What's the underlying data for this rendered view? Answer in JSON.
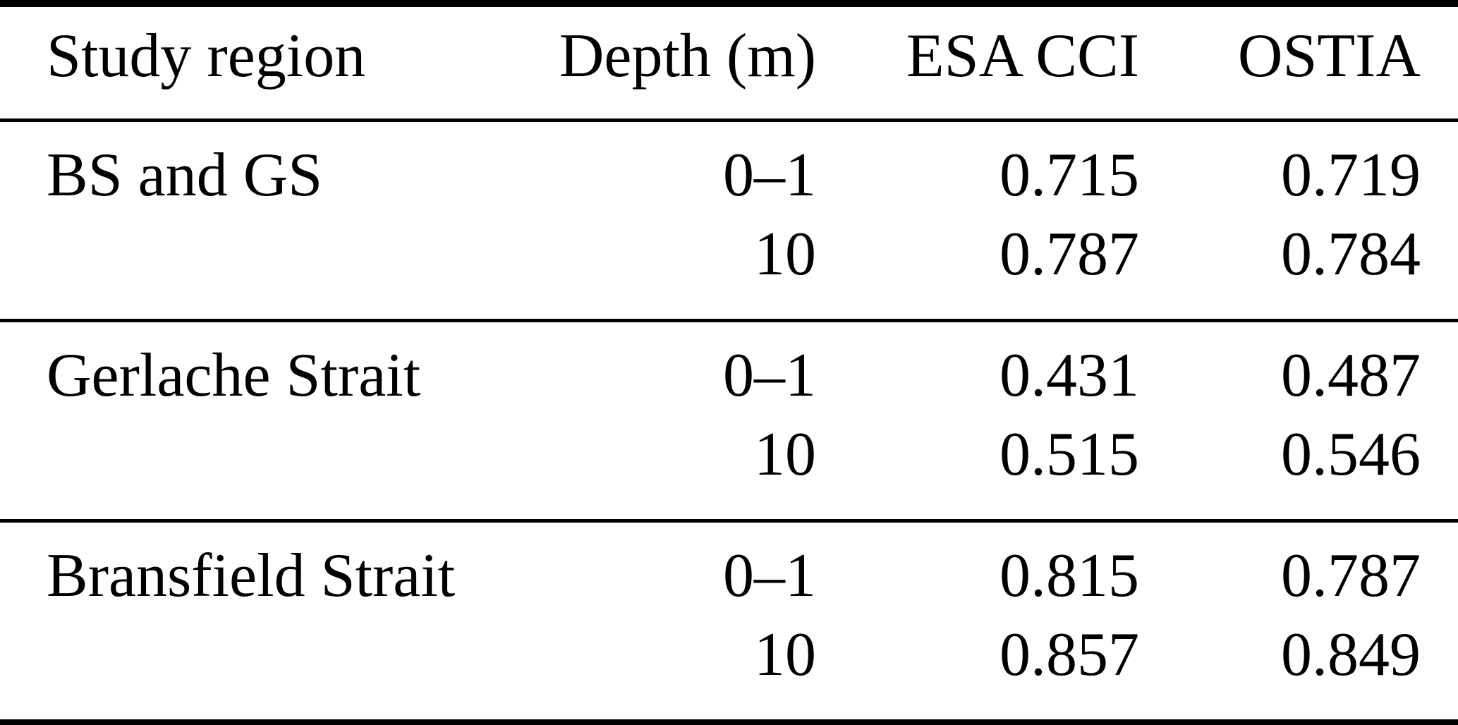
{
  "table": {
    "columns": [
      "Study region",
      "Depth (m)",
      "ESA CCI",
      "OSTIA"
    ],
    "sections": [
      {
        "region": "BS and GS",
        "rows": [
          {
            "depth": "0–1",
            "esa_cci": "0.715",
            "ostia": "0.719"
          },
          {
            "depth": "10",
            "esa_cci": "0.787",
            "ostia": "0.784"
          }
        ]
      },
      {
        "region": "Gerlache Strait",
        "rows": [
          {
            "depth": "0–1",
            "esa_cci": "0.431",
            "ostia": "0.487"
          },
          {
            "depth": "10",
            "esa_cci": "0.515",
            "ostia": "0.546"
          }
        ]
      },
      {
        "region": "Bransfield Strait",
        "rows": [
          {
            "depth": "0–1",
            "esa_cci": "0.815",
            "ostia": "0.787"
          },
          {
            "depth": "10",
            "esa_cci": "0.857",
            "ostia": "0.849"
          }
        ]
      }
    ]
  },
  "chart_data": {
    "type": "table",
    "columns": [
      "Study region",
      "Depth (m)",
      "ESA CCI",
      "OSTIA"
    ],
    "rows": [
      [
        "BS and GS",
        "0–1",
        0.715,
        0.719
      ],
      [
        "BS and GS",
        "10",
        0.787,
        0.784
      ],
      [
        "Gerlache Strait",
        "0–1",
        0.431,
        0.487
      ],
      [
        "Gerlache Strait",
        "10",
        0.515,
        0.546
      ],
      [
        "Bransfield Strait",
        "0–1",
        0.815,
        0.787
      ],
      [
        "Bransfield Strait",
        "10",
        0.857,
        0.849
      ]
    ]
  },
  "colors": {
    "text": "#000000",
    "background": "#ffffff",
    "rule": "#000000"
  }
}
